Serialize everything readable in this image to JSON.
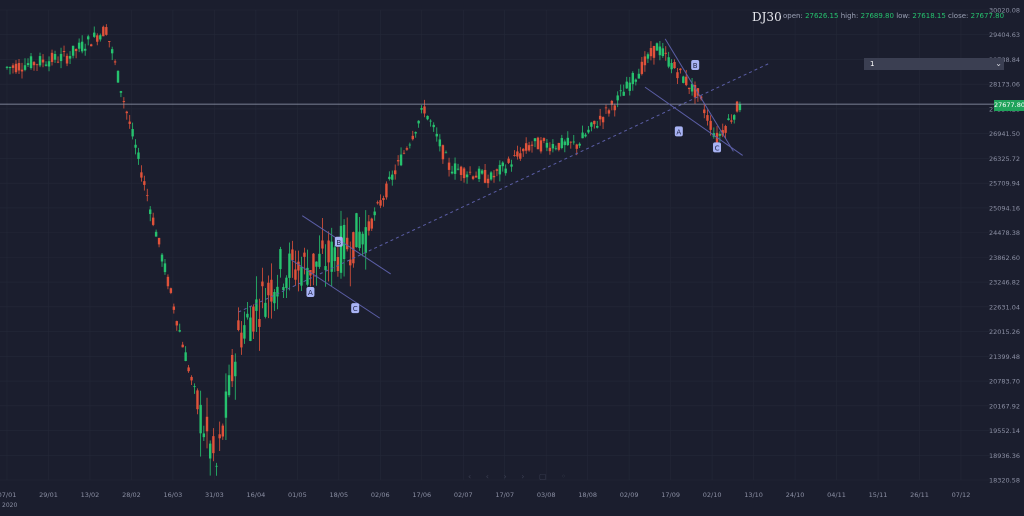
{
  "header": {
    "symbol": "DJ30",
    "ohlc": {
      "open_label": "open:",
      "open": "27626.15",
      "high_label": "high:",
      "high": "27689.80",
      "low_label": "low:",
      "low": "27618.15",
      "close_label": "close:",
      "close": "27677.80"
    }
  },
  "interval_input": {
    "value": "1"
  },
  "last_price_label": "27677.80",
  "colors": {
    "background": "#1b1e2e",
    "up": "#26c26e",
    "down": "#e0523a",
    "trendline": "#5b5ea6",
    "label_bg": "#a9b4f5"
  },
  "chart_data": {
    "type": "candlestick",
    "ylim": [
      18320.5,
      30020.08
    ],
    "yticks": [
      "30020.08",
      "29404.63",
      "28788.84",
      "28173.06",
      "27557.28",
      "26941.50",
      "26325.72",
      "25709.94",
      "25094.16",
      "24478.38",
      "23862.60",
      "23246.82",
      "22631.04",
      "22015.26",
      "21399.48",
      "20783.70",
      "20167.92",
      "19552.14",
      "18936.36",
      "18320.58"
    ],
    "xticks": [
      "07/01",
      "29/01",
      "13/02",
      "28/02",
      "16/03",
      "31/03",
      "16/04",
      "01/05",
      "18/05",
      "02/06",
      "17/06",
      "02/07",
      "17/07",
      "03/08",
      "18/08",
      "02/09",
      "17/09",
      "02/10",
      "13/10",
      "24/10",
      "04/11",
      "15/11",
      "26/11",
      "07/12"
    ],
    "year_label": "2020",
    "last_price": 27677.8,
    "ohlc_key": [
      {
        "date": "07/01",
        "close": 28583
      },
      {
        "date": "29/01",
        "close": 28859
      },
      {
        "date": "13/02",
        "close": 29551
      },
      {
        "date": "28/02",
        "close": 25409
      },
      {
        "date": "16/03",
        "close": 20188
      },
      {
        "date": "23/03",
        "close": 18592
      },
      {
        "date": "31/03",
        "close": 21917
      },
      {
        "date": "16/04",
        "close": 23537
      },
      {
        "date": "01/05",
        "close": 23724
      },
      {
        "date": "18/05",
        "close": 24597
      },
      {
        "date": "08/06",
        "close": 27572
      },
      {
        "date": "17/06",
        "close": 26119
      },
      {
        "date": "02/07",
        "close": 25827
      },
      {
        "date": "17/07",
        "close": 26672
      },
      {
        "date": "03/08",
        "close": 26664
      },
      {
        "date": "18/08",
        "close": 27778
      },
      {
        "date": "02/09",
        "close": 29100
      },
      {
        "date": "17/09",
        "close": 27901
      },
      {
        "date": "24/09",
        "close": 26815
      },
      {
        "date": "02/10",
        "close": 27677.8
      }
    ],
    "annotations": [
      "A",
      "B",
      "C",
      "A",
      "B",
      "C"
    ]
  }
}
